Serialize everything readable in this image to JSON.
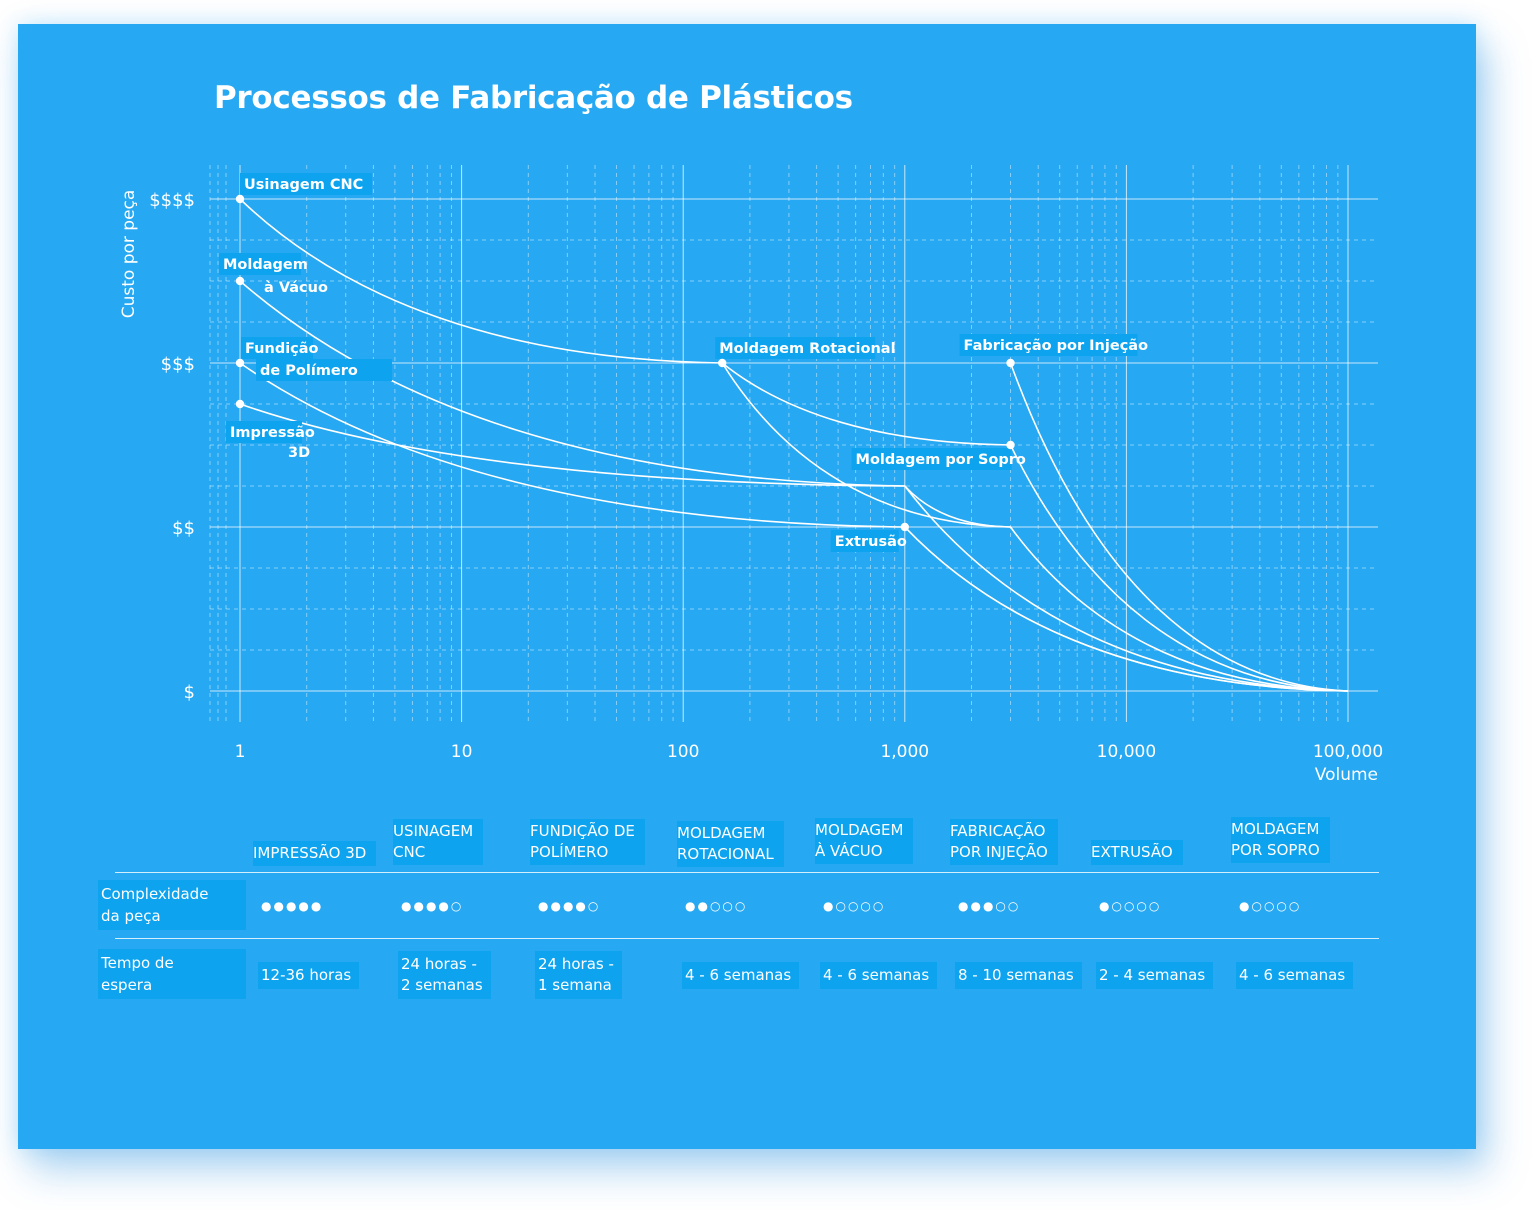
{
  "title": "Processos de Fabricação de Plásticos",
  "chart_data": {
    "type": "line",
    "title": "Processos de Fabricação de Plásticos",
    "xlabel": "Volume",
    "ylabel": "Custo por peça",
    "x_scale": "log",
    "xlim": [
      1,
      100000
    ],
    "x_ticks": [
      1,
      10,
      100,
      1000,
      10000,
      100000
    ],
    "x_tick_labels": [
      "1",
      "10",
      "100",
      "1,000",
      "10,000",
      "100,000"
    ],
    "y_ticks": [
      1,
      2,
      3,
      4
    ],
    "y_tick_labels": [
      "$",
      "$$",
      "$$$",
      "$$$$"
    ],
    "ylim": [
      1,
      4
    ],
    "grid": true,
    "series": [
      {
        "name": "Usinagem CNC",
        "points": [
          [
            1,
            4.0
          ],
          [
            150,
            3.0
          ],
          [
            3000,
            2.5
          ]
        ]
      },
      {
        "name": "Moldagem à Vácuo",
        "points": [
          [
            1,
            3.5
          ],
          [
            1000,
            2.25
          ],
          [
            100000,
            1.0
          ]
        ]
      },
      {
        "name": "Fundição de Polímero",
        "points": [
          [
            1,
            3.0
          ],
          [
            1000,
            2.0
          ],
          [
            100000,
            1.0
          ]
        ]
      },
      {
        "name": "Impressão 3D",
        "points": [
          [
            1,
            2.75
          ],
          [
            1000,
            2.25
          ],
          [
            3000,
            2.0
          ]
        ]
      },
      {
        "name": "Moldagem Rotacional",
        "points": [
          [
            150,
            3.0
          ],
          [
            3000,
            2.0
          ],
          [
            100000,
            1.0
          ]
        ]
      },
      {
        "name": "Moldagem por Sopro",
        "points": [
          [
            3000,
            2.5
          ],
          [
            100000,
            1.0
          ]
        ]
      },
      {
        "name": "Fabricação por Injeção",
        "points": [
          [
            3000,
            3.0
          ],
          [
            100000,
            1.0
          ]
        ]
      },
      {
        "name": "Extrusão",
        "points": [
          [
            1000,
            2.0
          ],
          [
            100000,
            1.0
          ]
        ]
      }
    ],
    "markers": [
      {
        "label": "Usinagem CNC",
        "x": 1,
        "y": 4.0
      },
      {
        "label": "Moldagem\nà Vácuo",
        "x": 1,
        "y": 3.5
      },
      {
        "label": "Fundição\nde Polímero",
        "x": 1,
        "y": 3.0
      },
      {
        "label": "Impressão\n3D",
        "x": 1,
        "y": 2.75
      },
      {
        "label": "Moldagem Rotacional",
        "x": 150,
        "y": 3.0
      },
      {
        "label": "Fabricação por Injeção",
        "x": 3000,
        "y": 3.0
      },
      {
        "label": "Moldagem por Sopro",
        "x": 3000,
        "y": 2.5
      },
      {
        "label": "Extrusão",
        "x": 1000,
        "y": 2.0
      }
    ]
  },
  "table": {
    "columns": [
      {
        "name": "Impressão 3D",
        "complexity": 5,
        "lead_time": "12-36 horas"
      },
      {
        "name": "Usinagem\nCNC",
        "complexity": 4,
        "lead_time": "24 horas -\n2 semanas"
      },
      {
        "name": "Fundição de\nPolímero",
        "complexity": 4,
        "lead_time": "24 horas -\n1 semana"
      },
      {
        "name": "Moldagem\nRotacional",
        "complexity": 2,
        "lead_time": "4 - 6 semanas"
      },
      {
        "name": "Moldagem\nà Vácuo",
        "complexity": 1,
        "lead_time": "4 - 6 semanas"
      },
      {
        "name": "Fabricação\npor Injeção",
        "complexity": 3,
        "lead_time": "8 - 10 semanas"
      },
      {
        "name": "Extrusão",
        "complexity": 1,
        "lead_time": "2 - 4 semanas"
      },
      {
        "name": "Moldagem\npor Sopro",
        "complexity": 1,
        "lead_time": "4 - 6 semanas"
      }
    ],
    "row_labels": {
      "complexity": "Complexidade\nda peça",
      "lead_time": "Tempo de\nespera"
    },
    "complexity_max": 5
  },
  "colors": {
    "background": "#26a8f2",
    "label_box": "#0ea3ef",
    "line": "#ffffff"
  }
}
